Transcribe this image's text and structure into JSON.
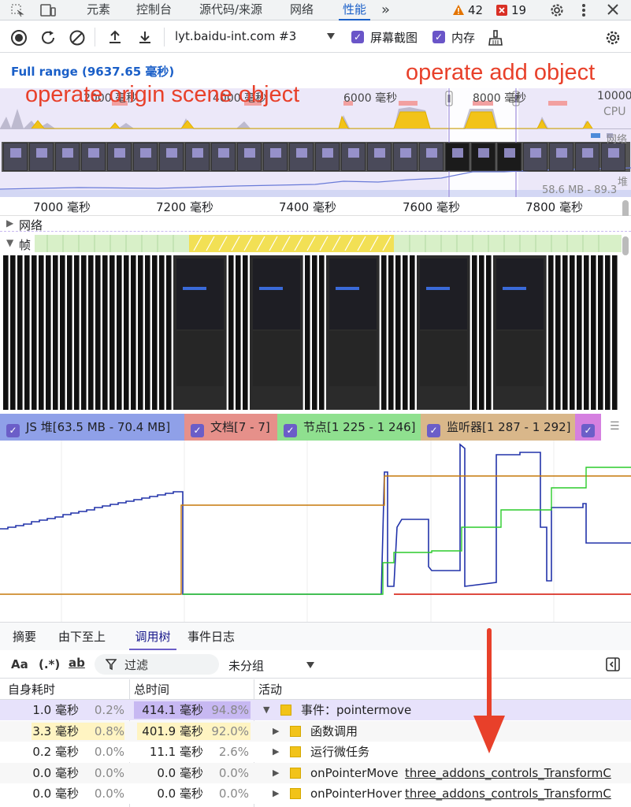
{
  "tabs": {
    "elements": "元素",
    "console": "控制台",
    "sources": "源代码/来源",
    "network": "网络",
    "performance": "性能",
    "more": "»",
    "warnings": "42",
    "errors": "19"
  },
  "toolbar": {
    "target": "lyt.baidu-int.com #3",
    "screenshots": "屏幕截图",
    "memory": "内存"
  },
  "overview": {
    "full_range": "Full range (9637.65 毫秒)",
    "ticks": [
      "2000 毫秒",
      "4000 毫秒",
      "6000 毫秒",
      "8000 毫秒",
      "10000"
    ],
    "cpu": "CPU",
    "net": "网络",
    "heap": "堆",
    "heap_range": "58.6 MB - 89.3 MB"
  },
  "annotations": {
    "origin": "operate origin scene object",
    "add": "operate add object"
  },
  "timeaxis": {
    "ticks": [
      "7000 毫秒",
      "7200 毫秒",
      "7400 毫秒",
      "7600 毫秒",
      "7800 毫秒"
    ]
  },
  "tracks": {
    "network": "网络",
    "frames": "帧"
  },
  "counters": [
    {
      "label": "JS 堆[63.5 MB - 70.4 MB]",
      "color": "#8fa0e8"
    },
    {
      "label": "文档[7 - 7]",
      "color": "#e6908a"
    },
    {
      "label": "节点[1 225 - 1 246]",
      "color": "#8fe08f"
    },
    {
      "label": "监听器[1 287 - 1 292]",
      "color": "#d9b78a"
    }
  ],
  "bottomtabs": {
    "summary": "摘要",
    "bottomup": "由下至上",
    "calltree": "调用树",
    "eventlog": "事件日志"
  },
  "filter": {
    "case": "Aa",
    "regex": "(.*)",
    "word": "ab",
    "placeholder": "过滤",
    "grouping": "未分组"
  },
  "table": {
    "headers": {
      "self": "自身耗时",
      "total": "总时间",
      "activity": "活动"
    },
    "rows": [
      {
        "self_ms": "1.0 毫秒",
        "self_pct": "0.2%",
        "total_ms": "414.1 毫秒",
        "total_pct": "94.8%",
        "name": "事件：pointermove",
        "link": "",
        "expanded": true
      },
      {
        "self_ms": "3.3 毫秒",
        "self_pct": "0.8%",
        "total_ms": "401.9 毫秒",
        "total_pct": "92.0%",
        "name": "函数调用",
        "link": "",
        "expanded": false
      },
      {
        "self_ms": "0.2 毫秒",
        "self_pct": "0.0%",
        "total_ms": "11.1 毫秒",
        "total_pct": "2.6%",
        "name": "运行微任务",
        "link": "",
        "expanded": false
      },
      {
        "self_ms": "0.0 毫秒",
        "self_pct": "0.0%",
        "total_ms": "0.0 毫秒",
        "total_pct": "0.0%",
        "name": "onPointerMove",
        "link": "three_addons_controls_TransformC",
        "expanded": false
      },
      {
        "self_ms": "0.0 毫秒",
        "self_pct": "0.0%",
        "total_ms": "0.0 毫秒",
        "total_pct": "0.0%",
        "name": "onPointerHover",
        "link": "three_addons_controls_TransformC",
        "expanded": false
      }
    ]
  }
}
